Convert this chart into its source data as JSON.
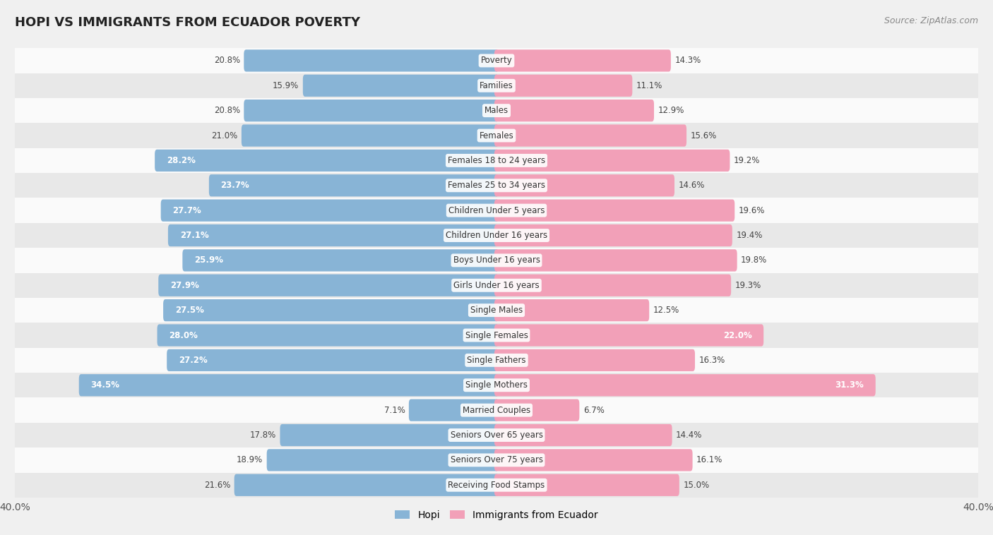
{
  "title": "HOPI VS IMMIGRANTS FROM ECUADOR POVERTY",
  "source": "Source: ZipAtlas.com",
  "categories": [
    "Poverty",
    "Families",
    "Males",
    "Females",
    "Females 18 to 24 years",
    "Females 25 to 34 years",
    "Children Under 5 years",
    "Children Under 16 years",
    "Boys Under 16 years",
    "Girls Under 16 years",
    "Single Males",
    "Single Females",
    "Single Fathers",
    "Single Mothers",
    "Married Couples",
    "Seniors Over 65 years",
    "Seniors Over 75 years",
    "Receiving Food Stamps"
  ],
  "hopi_values": [
    20.8,
    15.9,
    20.8,
    21.0,
    28.2,
    23.7,
    27.7,
    27.1,
    25.9,
    27.9,
    27.5,
    28.0,
    27.2,
    34.5,
    7.1,
    17.8,
    18.9,
    21.6
  ],
  "ecuador_values": [
    14.3,
    11.1,
    12.9,
    15.6,
    19.2,
    14.6,
    19.6,
    19.4,
    19.8,
    19.3,
    12.5,
    22.0,
    16.3,
    31.3,
    6.7,
    14.4,
    16.1,
    15.0
  ],
  "hopi_color": "#88b4d6",
  "ecuador_color": "#f2a0b8",
  "label_color_dark": "#444444",
  "label_color_light": "#ffffff",
  "bg_color": "#f0f0f0",
  "row_color_light": "#fafafa",
  "row_color_dark": "#e8e8e8",
  "axis_limit": 40.0,
  "bar_height": 0.52,
  "legend_hopi": "Hopi",
  "legend_ecuador": "Immigrants from Ecuador",
  "value_inside_threshold": 22.0
}
